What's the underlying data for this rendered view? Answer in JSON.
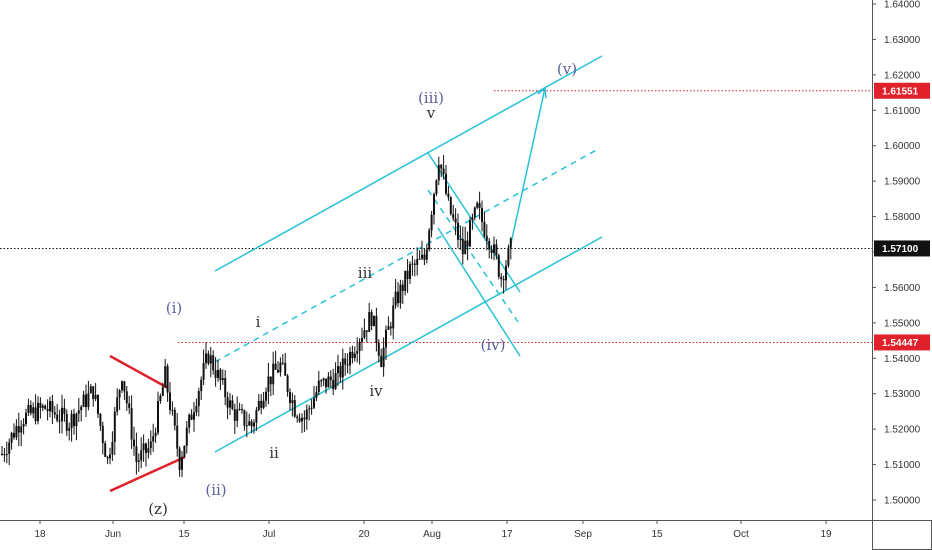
{
  "chart_data": {
    "type": "candlestick",
    "title": "",
    "xlabel": "",
    "ylabel": "",
    "ylim": [
      1.495,
      1.645
    ],
    "x_ticks": [
      "18",
      "Jun",
      "15",
      "Jul",
      "20",
      "Aug",
      "17",
      "Sep",
      "15",
      "Oct",
      "19"
    ],
    "y_ticks": [
      "1.64000",
      "1.63000",
      "1.62000",
      "1.61000",
      "1.60000",
      "1.59000",
      "1.58000",
      "1.57000",
      "1.56000",
      "1.55000",
      "1.54000",
      "1.53000",
      "1.52000",
      "1.51000",
      "1.50000"
    ],
    "y_tick_values": [
      1.64,
      1.63,
      1.62,
      1.61,
      1.6,
      1.59,
      1.58,
      1.57,
      1.56,
      1.55,
      1.54,
      1.53,
      1.52,
      1.51,
      1.5
    ],
    "price_levels": [
      {
        "label": "1.61551",
        "value": 1.61551,
        "color": "#e0202a",
        "style": "dotted"
      },
      {
        "label": "1.57100",
        "value": 1.571,
        "color": "#111111",
        "style": "dotted"
      },
      {
        "label": "1.54447",
        "value": 1.54447,
        "color": "#e0202a",
        "style": "dotted"
      }
    ],
    "price_path": [
      {
        "day": 0,
        "close": 1.513
      },
      {
        "day": 4,
        "close": 1.523
      },
      {
        "day": 9,
        "close": 1.526
      },
      {
        "day": 14,
        "close": 1.522
      },
      {
        "day": 19,
        "close": 1.531
      },
      {
        "day": 22,
        "close": 1.511
      },
      {
        "day": 25,
        "close": 1.536
      },
      {
        "day": 28,
        "close": 1.511
      },
      {
        "day": 31,
        "close": 1.515
      },
      {
        "day": 34,
        "close": 1.535
      },
      {
        "day": 37,
        "close": 1.511
      },
      {
        "day": 40,
        "close": 1.527
      },
      {
        "day": 43,
        "close": 1.541
      },
      {
        "day": 45,
        "close": 1.535
      },
      {
        "day": 48,
        "close": 1.525
      },
      {
        "day": 52,
        "close": 1.521
      },
      {
        "day": 55,
        "close": 1.533
      },
      {
        "day": 58,
        "close": 1.538
      },
      {
        "day": 61,
        "close": 1.526
      },
      {
        "day": 63,
        "close": 1.523
      },
      {
        "day": 66,
        "close": 1.532
      },
      {
        "day": 70,
        "close": 1.535
      },
      {
        "day": 74,
        "close": 1.545
      },
      {
        "day": 77,
        "close": 1.552
      },
      {
        "day": 79,
        "close": 1.54
      },
      {
        "day": 82,
        "close": 1.556
      },
      {
        "day": 85,
        "close": 1.565
      },
      {
        "day": 88,
        "close": 1.568
      },
      {
        "day": 91,
        "close": 1.597
      },
      {
        "day": 93,
        "close": 1.583
      },
      {
        "day": 96,
        "close": 1.57
      },
      {
        "day": 99,
        "close": 1.582
      },
      {
        "day": 102,
        "close": 1.572
      },
      {
        "day": 104,
        "close": 1.563
      },
      {
        "day": 106,
        "close": 1.571
      }
    ],
    "wave_labels": [
      {
        "text": "(i)",
        "style": "blue"
      },
      {
        "text": "(ii)",
        "style": "blue"
      },
      {
        "text": "(iii)",
        "style": "blue"
      },
      {
        "text": "(iv)",
        "style": "blue"
      },
      {
        "text": "(v)",
        "style": "blue"
      },
      {
        "text": "(z)",
        "style": "dark"
      },
      {
        "text": "i",
        "style": "dark"
      },
      {
        "text": "ii",
        "style": "dark"
      },
      {
        "text": "iii",
        "style": "dark"
      },
      {
        "text": "iv",
        "style": "dark"
      },
      {
        "text": "v",
        "style": "dark"
      }
    ],
    "colors": {
      "channel": "#27c2d6",
      "triangle": "#e0202a",
      "candles": "#111111",
      "level_red": "#e0202a",
      "level_black": "#111111"
    },
    "grid": false
  }
}
